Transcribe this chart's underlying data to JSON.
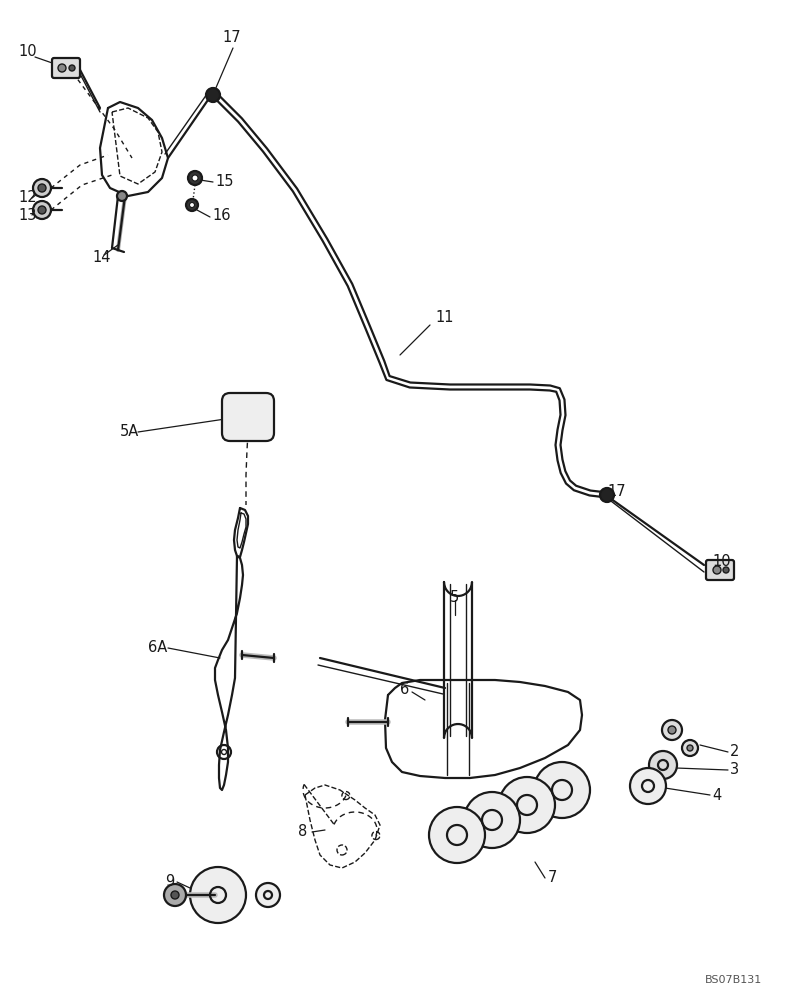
{
  "bg_color": "#ffffff",
  "line_color": "#1a1a1a",
  "label_color": "#1a1a1a",
  "watermark": "BS07B131",
  "lw_main": 1.6,
  "lw_thin": 1.0,
  "lw_cable": 1.8
}
